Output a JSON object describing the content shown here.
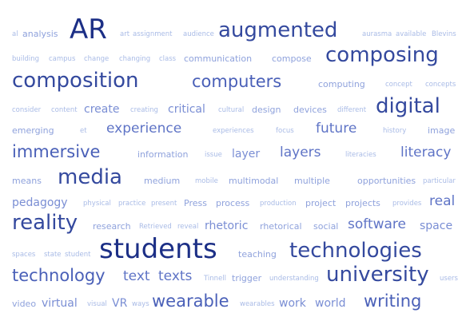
{
  "words": [
    {
      "text": "al",
      "weight": 0
    },
    {
      "text": "analysis",
      "weight": 1
    },
    {
      "text": "AR",
      "weight": 6
    },
    {
      "text": "art",
      "weight": 0
    },
    {
      "text": "assignment",
      "weight": 0
    },
    {
      "text": "audience",
      "weight": 0
    },
    {
      "text": "augmented",
      "weight": 5
    },
    {
      "text": "aurasma",
      "weight": 0
    },
    {
      "text": "available",
      "weight": 0
    },
    {
      "text": "Blevins",
      "weight": 0
    },
    {
      "text": "building",
      "weight": 0
    },
    {
      "text": "campus",
      "weight": 0
    },
    {
      "text": "change",
      "weight": 0
    },
    {
      "text": "changing",
      "weight": 0
    },
    {
      "text": "class",
      "weight": 0
    },
    {
      "text": "communication",
      "weight": 1
    },
    {
      "text": "compose",
      "weight": 1
    },
    {
      "text": "composing",
      "weight": 5
    },
    {
      "text": "composition",
      "weight": 5
    },
    {
      "text": "computers",
      "weight": 4
    },
    {
      "text": "computing",
      "weight": 1
    },
    {
      "text": "concept",
      "weight": 0
    },
    {
      "text": "concepts",
      "weight": 0
    },
    {
      "text": "consider",
      "weight": 0
    },
    {
      "text": "content",
      "weight": 0
    },
    {
      "text": "create",
      "weight": 2
    },
    {
      "text": "creating",
      "weight": 0
    },
    {
      "text": "critical",
      "weight": 2
    },
    {
      "text": "cultural",
      "weight": 0
    },
    {
      "text": "design",
      "weight": 1
    },
    {
      "text": "devices",
      "weight": 1
    },
    {
      "text": "different",
      "weight": 0
    },
    {
      "text": "digital",
      "weight": 5
    },
    {
      "text": "emerging",
      "weight": 1
    },
    {
      "text": "et",
      "weight": 0
    },
    {
      "text": "experience",
      "weight": 3
    },
    {
      "text": "experiences",
      "weight": 0
    },
    {
      "text": "focus",
      "weight": 0
    },
    {
      "text": "future",
      "weight": 3
    },
    {
      "text": "history",
      "weight": 0
    },
    {
      "text": "image",
      "weight": 1
    },
    {
      "text": "immersive",
      "weight": 4
    },
    {
      "text": "information",
      "weight": 1
    },
    {
      "text": "issue",
      "weight": 0
    },
    {
      "text": "layer",
      "weight": 2
    },
    {
      "text": "layers",
      "weight": 3
    },
    {
      "text": "literacies",
      "weight": 0
    },
    {
      "text": "literacy",
      "weight": 3
    },
    {
      "text": "means",
      "weight": 1
    },
    {
      "text": "media",
      "weight": 5
    },
    {
      "text": "medium",
      "weight": 1
    },
    {
      "text": "mobile",
      "weight": 0
    },
    {
      "text": "multimodal",
      "weight": 1
    },
    {
      "text": "multiple",
      "weight": 1
    },
    {
      "text": "opportunities",
      "weight": 1
    },
    {
      "text": "particular",
      "weight": 0
    },
    {
      "text": "pedagogy",
      "weight": 2
    },
    {
      "text": "physical",
      "weight": 0
    },
    {
      "text": "practice",
      "weight": 0
    },
    {
      "text": "present",
      "weight": 0
    },
    {
      "text": "Press",
      "weight": 1
    },
    {
      "text": "process",
      "weight": 1
    },
    {
      "text": "production",
      "weight": 0
    },
    {
      "text": "project",
      "weight": 1
    },
    {
      "text": "projects",
      "weight": 1
    },
    {
      "text": "provides",
      "weight": 0
    },
    {
      "text": "real",
      "weight": 3
    },
    {
      "text": "reality",
      "weight": 5
    },
    {
      "text": "research",
      "weight": 1
    },
    {
      "text": "Retrieved",
      "weight": 0
    },
    {
      "text": "reveal",
      "weight": 0
    },
    {
      "text": "rhetoric",
      "weight": 2
    },
    {
      "text": "rhetorical",
      "weight": 1
    },
    {
      "text": "social",
      "weight": 1
    },
    {
      "text": "software",
      "weight": 3
    },
    {
      "text": "space",
      "weight": 2
    },
    {
      "text": "spaces",
      "weight": 0
    },
    {
      "text": "state",
      "weight": 0
    },
    {
      "text": "student",
      "weight": 0
    },
    {
      "text": "students",
      "weight": 6
    },
    {
      "text": "teaching",
      "weight": 1
    },
    {
      "text": "technologies",
      "weight": 5
    },
    {
      "text": "technology",
      "weight": 4
    },
    {
      "text": "text",
      "weight": 3
    },
    {
      "text": "texts",
      "weight": 3
    },
    {
      "text": "Tinnell",
      "weight": 0
    },
    {
      "text": "trigger",
      "weight": 1
    },
    {
      "text": "understanding",
      "weight": 0
    },
    {
      "text": "university",
      "weight": 5
    },
    {
      "text": "users",
      "weight": 0
    },
    {
      "text": "video",
      "weight": 1
    },
    {
      "text": "virtual",
      "weight": 2
    },
    {
      "text": "visual",
      "weight": 0
    },
    {
      "text": "VR",
      "weight": 2
    },
    {
      "text": "ways",
      "weight": 0
    },
    {
      "text": "wearable",
      "weight": 4
    },
    {
      "text": "wearables",
      "weight": 0
    },
    {
      "text": "work",
      "weight": 2
    },
    {
      "text": "world",
      "weight": 2
    },
    {
      "text": "writing",
      "weight": 4
    }
  ],
  "palette": [
    "#a9bbe6",
    "#8fa2dc",
    "#7a8ed4",
    "#5f74c6",
    "#4a60b8",
    "#34499e",
    "#1c2f86"
  ]
}
